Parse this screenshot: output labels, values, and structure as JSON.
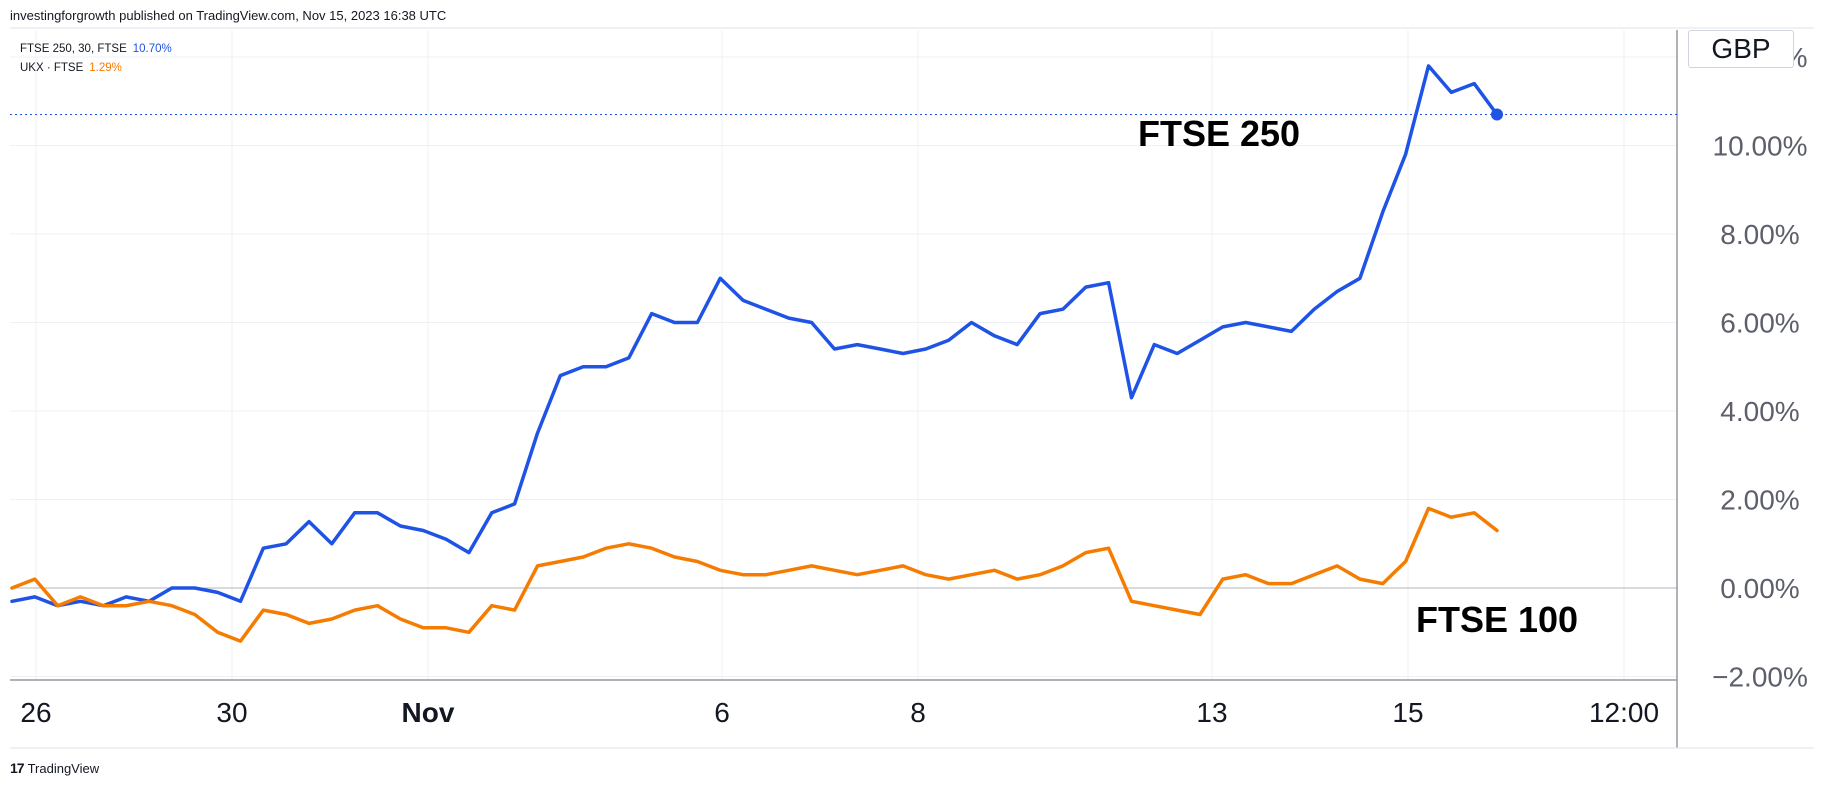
{
  "header": {
    "publisher_text": "investingforgrowth published on TradingView.com, Nov 15, 2023 16:38 UTC"
  },
  "legend": [
    {
      "label": "FTSE 250, 30, FTSE",
      "value": "10.70%",
      "color": "#1e53e5"
    },
    {
      "label": "UKX · FTSE",
      "value": "1.29%",
      "color": "#f57c00"
    }
  ],
  "currency_button": "GBP",
  "footer": {
    "logo": "17",
    "brand": "TradingView"
  },
  "chart_data": {
    "type": "line",
    "ylabel": "",
    "y_unit": "%",
    "ylim": [
      -2.0,
      11.8
    ],
    "y_ticks": [
      "12.00%",
      "10.00%",
      "8.00%",
      "6.00%",
      "4.00%",
      "2.00%",
      "0.00%",
      "−2.00%"
    ],
    "x_ticks": [
      {
        "label": "26",
        "bold": false
      },
      {
        "label": "30",
        "bold": false
      },
      {
        "label": "Nov",
        "bold": true
      },
      {
        "label": "6",
        "bold": false
      },
      {
        "label": "8",
        "bold": false
      },
      {
        "label": "13",
        "bold": false
      },
      {
        "label": "15",
        "bold": false
      },
      {
        "label": "12:00",
        "bold": false
      }
    ],
    "grid": true,
    "annotations": [
      {
        "text": "FTSE 250",
        "series": 0
      },
      {
        "text": "FTSE 100",
        "series": 1
      }
    ],
    "x_points": 66,
    "series": [
      {
        "name": "FTSE 250",
        "color": "#1e53e5",
        "last_value": 10.7,
        "values": [
          -0.3,
          -0.2,
          -0.4,
          -0.3,
          -0.4,
          -0.2,
          -0.3,
          0.0,
          0.0,
          -0.1,
          -0.3,
          0.9,
          1.0,
          1.5,
          1.0,
          1.7,
          1.7,
          1.4,
          1.3,
          1.1,
          0.8,
          1.7,
          1.9,
          3.5,
          4.8,
          5.0,
          5.0,
          5.2,
          6.2,
          6.0,
          6.0,
          7.0,
          6.5,
          6.3,
          6.1,
          6.0,
          5.4,
          5.5,
          5.4,
          5.3,
          5.4,
          5.6,
          6.0,
          5.7,
          5.5,
          6.2,
          6.3,
          6.8,
          6.9,
          4.3,
          5.5,
          5.3,
          5.6,
          5.9,
          6.0,
          5.9,
          5.8,
          6.3,
          6.7,
          7.0,
          8.5,
          9.8,
          11.8,
          11.2,
          11.4,
          10.7
        ]
      },
      {
        "name": "FTSE 100",
        "color": "#f57c00",
        "last_value": 1.29,
        "values": [
          0.0,
          0.2,
          -0.4,
          -0.2,
          -0.4,
          -0.4,
          -0.3,
          -0.4,
          -0.6,
          -1.0,
          -1.2,
          -0.5,
          -0.6,
          -0.8,
          -0.7,
          -0.5,
          -0.4,
          -0.7,
          -0.9,
          -0.9,
          -1.0,
          -0.4,
          -0.5,
          0.5,
          0.6,
          0.7,
          0.9,
          1.0,
          0.9,
          0.7,
          0.6,
          0.4,
          0.3,
          0.3,
          0.4,
          0.5,
          0.4,
          0.3,
          0.4,
          0.5,
          0.3,
          0.2,
          0.3,
          0.4,
          0.2,
          0.3,
          0.5,
          0.8,
          0.9,
          -0.3,
          -0.4,
          -0.5,
          -0.6,
          0.2,
          0.3,
          0.1,
          0.1,
          0.3,
          0.5,
          0.2,
          0.1,
          0.6,
          1.8,
          1.6,
          1.7,
          1.3
        ]
      }
    ]
  }
}
